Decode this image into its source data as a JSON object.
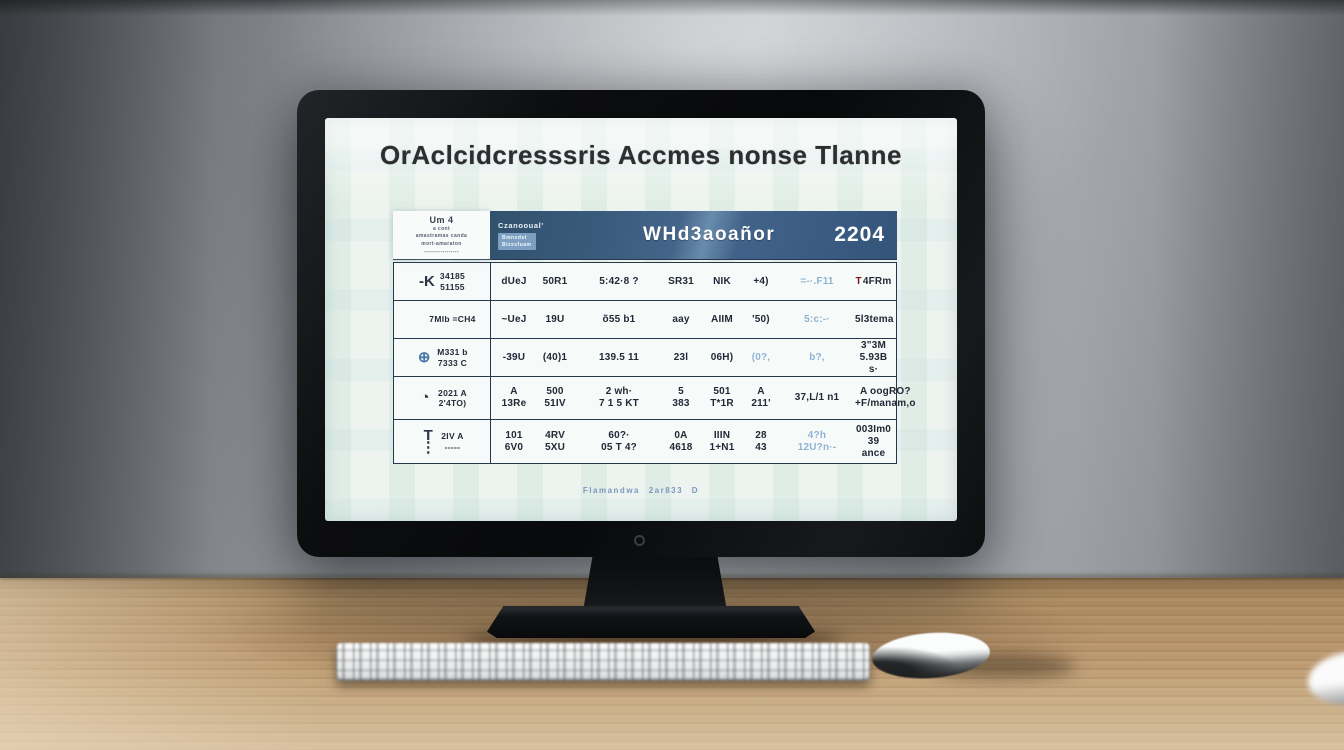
{
  "screen": {
    "title": "OrAclcidcresssris Accmes nonse Tlanne",
    "footer_note": "Flamandwa 2ar833 D",
    "table": {
      "corner": {
        "heading": "Um 4",
        "lines": [
          "a cont",
          "amastramas canda",
          "mort-amaraton",
          "-----------------"
        ]
      },
      "header": {
        "brand": "Czanooual'",
        "badge_line1": "Bmnxdst",
        "badge_line2": "Blzxxfuam",
        "title": "WHd3aoañor",
        "year": "2204"
      },
      "rows": [
        {
          "icon": "-K",
          "icon_name": "tally-mark-icon",
          "icon_tone": "",
          "label": "34185\n51155",
          "cells": [
            "dUeJ",
            "50R1",
            "5:42·8 ?",
            "SR31",
            "NIK",
            "+4)",
            {
              "t": "=-·.F11",
              "tone": "blue"
            },
            {
              "lead": "T",
              "t": "4FRm"
            }
          ]
        },
        {
          "icon": "",
          "icon_name": "formula-icon",
          "icon_tone": "",
          "label": "7Mlb =CH4",
          "cells": [
            "~UeJ",
            "19U",
            "õ55 b1",
            "aay",
            "AIIM",
            "'50)",
            {
              "t": "5:c:-·",
              "tone": "blue"
            },
            "5l3tema"
          ]
        },
        {
          "icon": "⊕",
          "icon_name": "globe-icon",
          "icon_tone": "blue",
          "label": "M331 b\n7333 C",
          "cells": [
            "-39U",
            "(40)1",
            "139.5 11",
            "23l",
            "06H)",
            {
              "t": "(0?,",
              "tone": "blue"
            },
            {
              "t": "b?,",
              "tone": "blue"
            },
            "3\"3M\n5.93B s·"
          ]
        },
        {
          "icon": "◔",
          "icon_name": "clock-icon",
          "icon_tone": "",
          "label": "2021 A\n2'4TO)",
          "cells": [
            "A\n13Re",
            "500\n51IV",
            "2 wh·\n7 1 5 KT",
            "5\n383",
            "501\nT*1R",
            "A\n211'",
            "37,L/1 n1",
            "A oogRO?\n+F/manam,o"
          ]
        },
        {
          "icon": "T\n⋮",
          "icon_name": "thermometer-icon",
          "icon_tone": "",
          "label": "2IV A\n-----",
          "cells": [
            "101\n6V0",
            "4RV\n5XU",
            "60?·\n05 T 4?",
            "0A\n4618",
            "IIIN\n1+N1",
            "28\n43",
            {
              "t": "4?h\n12U?n·-",
              "tone": "blue"
            },
            "003Im0\n39 ance"
          ]
        }
      ]
    }
  },
  "colors": {
    "header_blue": "#3a5c7d",
    "badge_blue": "#7da0c2",
    "light_blue_text": "#8fb3d3",
    "red_mark": "#7e1414",
    "table_border": "#26384e",
    "screen_bg": "#edf3ef",
    "desk_wood": "#b6936a"
  }
}
